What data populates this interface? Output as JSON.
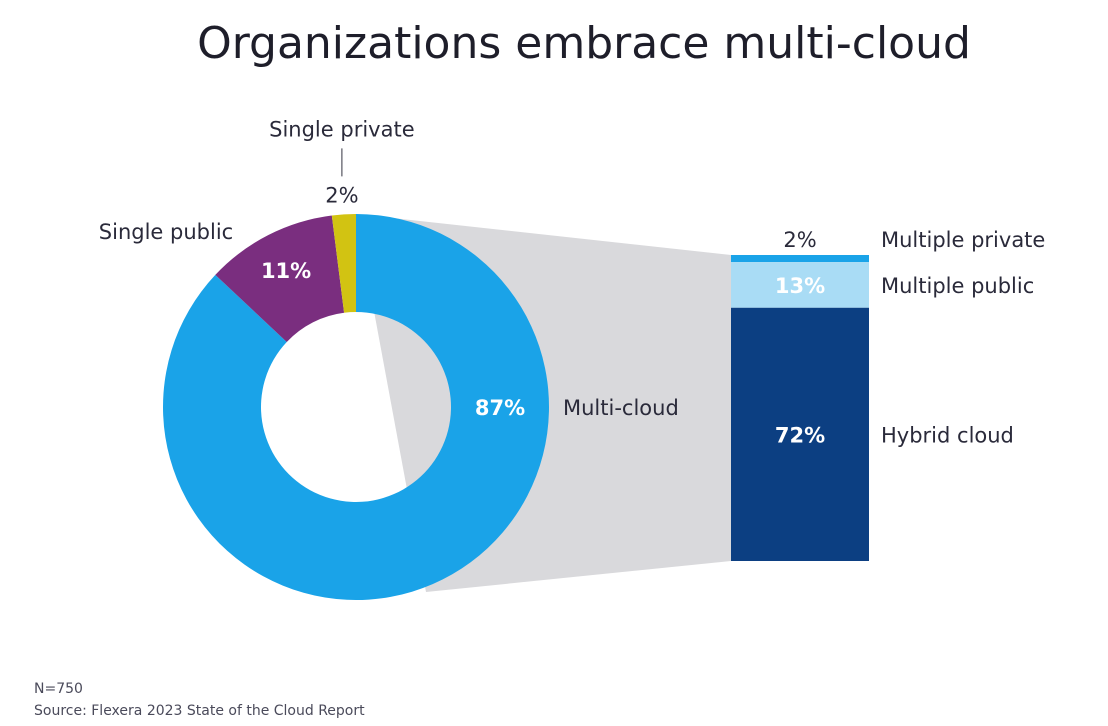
{
  "chart_data": {
    "type": "pie",
    "title": "Organizations embrace multi-cloud",
    "donut": {
      "slices": [
        {
          "label": "Multi-cloud",
          "value": 87,
          "display": "87%",
          "color": "#1aa3e8"
        },
        {
          "label": "Single public",
          "value": 11,
          "display": "11%",
          "color": "#7a2e7f"
        },
        {
          "label": "Single private",
          "value": 2,
          "display": "2%",
          "color": "#d2c312"
        }
      ]
    },
    "breakdown": {
      "parent": "Multi-cloud",
      "segments": [
        {
          "label": "Multiple private",
          "value": 2,
          "display": "2%",
          "color": "#1aa3e8"
        },
        {
          "label": "Multiple public",
          "value": 13,
          "display": "13%",
          "color": "#a9dcf5"
        },
        {
          "label": "Hybrid cloud",
          "value": 72,
          "display": "72%",
          "color": "#0c3f82"
        }
      ]
    },
    "footnote": {
      "n": "N=750",
      "source": "Source: Flexera 2023 State of the Cloud Report"
    }
  }
}
